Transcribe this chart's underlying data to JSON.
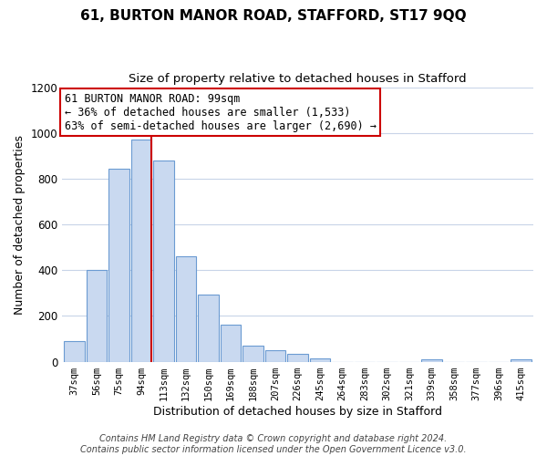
{
  "title": "61, BURTON MANOR ROAD, STAFFORD, ST17 9QQ",
  "subtitle": "Size of property relative to detached houses in Stafford",
  "xlabel": "Distribution of detached houses by size in Stafford",
  "ylabel": "Number of detached properties",
  "categories": [
    "37sqm",
    "56sqm",
    "75sqm",
    "94sqm",
    "113sqm",
    "132sqm",
    "150sqm",
    "169sqm",
    "188sqm",
    "207sqm",
    "226sqm",
    "245sqm",
    "264sqm",
    "283sqm",
    "302sqm",
    "321sqm",
    "339sqm",
    "358sqm",
    "377sqm",
    "396sqm",
    "415sqm"
  ],
  "values": [
    90,
    400,
    845,
    970,
    880,
    460,
    295,
    160,
    70,
    50,
    35,
    15,
    0,
    0,
    0,
    0,
    10,
    0,
    0,
    0,
    10
  ],
  "bar_color": "#c9d9f0",
  "bar_edge_color": "#6b9bd2",
  "highlight_index": 3,
  "highlight_line_color": "#cc0000",
  "annotation_line1": "61 BURTON MANOR ROAD: 99sqm",
  "annotation_line2": "← 36% of detached houses are smaller (1,533)",
  "annotation_line3": "63% of semi-detached houses are larger (2,690) →",
  "annotation_box_color": "#ffffff",
  "annotation_box_edge": "#cc0000",
  "ylim": [
    0,
    1200
  ],
  "yticks": [
    0,
    200,
    400,
    600,
    800,
    1000,
    1200
  ],
  "background_color": "#ffffff",
  "grid_color": "#c8d4e8",
  "footer": "Contains HM Land Registry data © Crown copyright and database right 2024.\nContains public sector information licensed under the Open Government Licence v3.0.",
  "title_fontsize": 11,
  "subtitle_fontsize": 9.5,
  "xlabel_fontsize": 9,
  "ylabel_fontsize": 9,
  "footer_fontsize": 7,
  "annot_fontsize": 8.5
}
